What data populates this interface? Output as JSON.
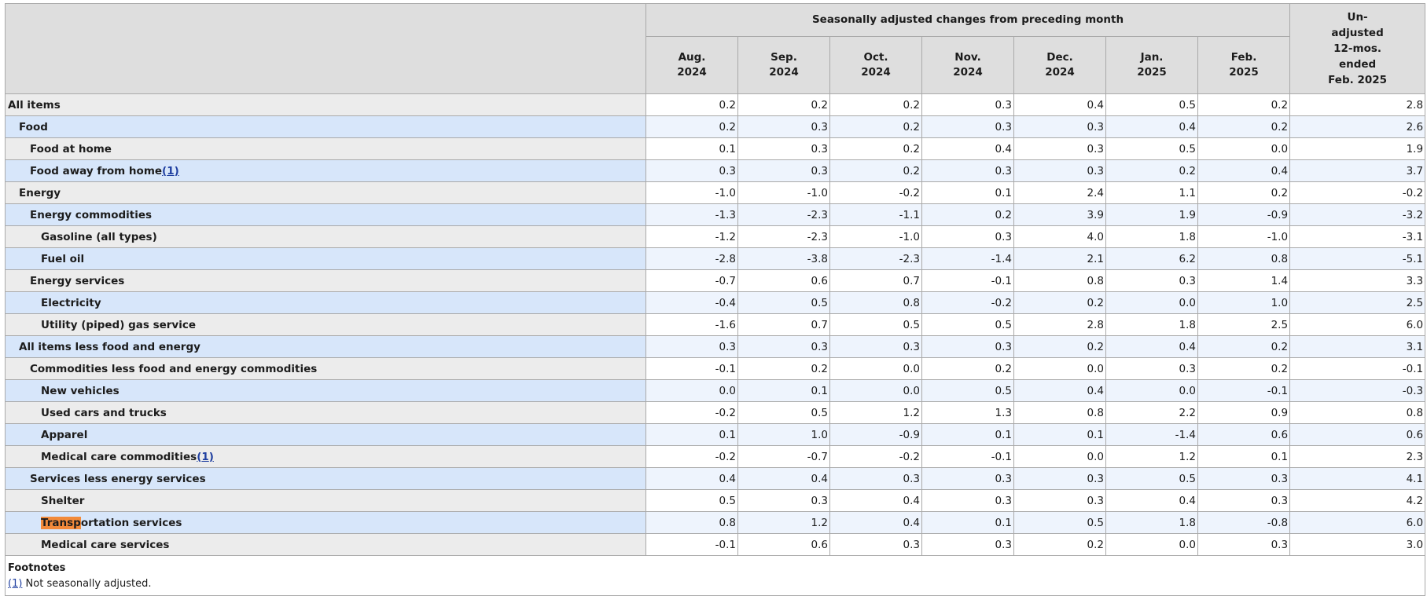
{
  "header": {
    "group_title": "Seasonally adjusted changes from preceding month",
    "months": [
      {
        "line1": "Aug.",
        "line2": "2024"
      },
      {
        "line1": "Sep.",
        "line2": "2024"
      },
      {
        "line1": "Oct.",
        "line2": "2024"
      },
      {
        "line1": "Nov.",
        "line2": "2024"
      },
      {
        "line1": "Dec.",
        "line2": "2024"
      },
      {
        "line1": "Jan.",
        "line2": "2025"
      },
      {
        "line1": "Feb.",
        "line2": "2025"
      }
    ],
    "unadjusted_lines": [
      "Un-",
      "adjusted",
      "12-mos.",
      "ended",
      "Feb. 2025"
    ]
  },
  "rows": [
    {
      "label": "All items",
      "indent": 0,
      "values": [
        "0.2",
        "0.2",
        "0.2",
        "0.3",
        "0.4",
        "0.5",
        "0.2",
        "2.8"
      ]
    },
    {
      "label": "Food",
      "indent": 1,
      "values": [
        "0.2",
        "0.3",
        "0.2",
        "0.3",
        "0.3",
        "0.4",
        "0.2",
        "2.6"
      ]
    },
    {
      "label": "Food at home",
      "indent": 2,
      "values": [
        "0.1",
        "0.3",
        "0.2",
        "0.4",
        "0.3",
        "0.5",
        "0.0",
        "1.9"
      ]
    },
    {
      "label": "Food away from home",
      "indent": 2,
      "footnote": "1",
      "values": [
        "0.3",
        "0.3",
        "0.2",
        "0.3",
        "0.3",
        "0.2",
        "0.4",
        "3.7"
      ]
    },
    {
      "label": "Energy",
      "indent": 1,
      "values": [
        "-1.0",
        "-1.0",
        "-0.2",
        "0.1",
        "2.4",
        "1.1",
        "0.2",
        "-0.2"
      ]
    },
    {
      "label": "Energy commodities",
      "indent": 2,
      "values": [
        "-1.3",
        "-2.3",
        "-1.1",
        "0.2",
        "3.9",
        "1.9",
        "-0.9",
        "-3.2"
      ]
    },
    {
      "label": "Gasoline (all types)",
      "indent": 3,
      "values": [
        "-1.2",
        "-2.3",
        "-1.0",
        "0.3",
        "4.0",
        "1.8",
        "-1.0",
        "-3.1"
      ]
    },
    {
      "label": "Fuel oil",
      "indent": 3,
      "values": [
        "-2.8",
        "-3.8",
        "-2.3",
        "-1.4",
        "2.1",
        "6.2",
        "0.8",
        "-5.1"
      ]
    },
    {
      "label": "Energy services",
      "indent": 2,
      "values": [
        "-0.7",
        "0.6",
        "0.7",
        "-0.1",
        "0.8",
        "0.3",
        "1.4",
        "3.3"
      ]
    },
    {
      "label": "Electricity",
      "indent": 3,
      "values": [
        "-0.4",
        "0.5",
        "0.8",
        "-0.2",
        "0.2",
        "0.0",
        "1.0",
        "2.5"
      ]
    },
    {
      "label": "Utility (piped) gas service",
      "indent": 3,
      "values": [
        "-1.6",
        "0.7",
        "0.5",
        "0.5",
        "2.8",
        "1.8",
        "2.5",
        "6.0"
      ]
    },
    {
      "label": "All items less food and energy",
      "indent": 1,
      "values": [
        "0.3",
        "0.3",
        "0.3",
        "0.3",
        "0.2",
        "0.4",
        "0.2",
        "3.1"
      ]
    },
    {
      "label": "Commodities less food and energy commodities",
      "indent": 2,
      "values": [
        "-0.1",
        "0.2",
        "0.0",
        "0.2",
        "0.0",
        "0.3",
        "0.2",
        "-0.1"
      ]
    },
    {
      "label": "New vehicles",
      "indent": 3,
      "values": [
        "0.0",
        "0.1",
        "0.0",
        "0.5",
        "0.4",
        "0.0",
        "-0.1",
        "-0.3"
      ]
    },
    {
      "label": "Used cars and trucks",
      "indent": 3,
      "values": [
        "-0.2",
        "0.5",
        "1.2",
        "1.3",
        "0.8",
        "2.2",
        "0.9",
        "0.8"
      ]
    },
    {
      "label": "Apparel",
      "indent": 3,
      "values": [
        "0.1",
        "1.0",
        "-0.9",
        "0.1",
        "0.1",
        "-1.4",
        "0.6",
        "0.6"
      ]
    },
    {
      "label": "Medical care commodities",
      "indent": 3,
      "footnote": "1",
      "values": [
        "-0.2",
        "-0.7",
        "-0.2",
        "-0.1",
        "0.0",
        "1.2",
        "0.1",
        "2.3"
      ]
    },
    {
      "label": "Services less energy services",
      "indent": 2,
      "values": [
        "0.4",
        "0.4",
        "0.3",
        "0.3",
        "0.3",
        "0.5",
        "0.3",
        "4.1"
      ]
    },
    {
      "label": "Shelter",
      "indent": 3,
      "values": [
        "0.5",
        "0.3",
        "0.4",
        "0.3",
        "0.3",
        "0.4",
        "0.3",
        "4.2"
      ]
    },
    {
      "label": "Transportation services",
      "indent": 3,
      "highlight_prefix": "Transp",
      "values": [
        "0.8",
        "1.2",
        "0.4",
        "0.1",
        "0.5",
        "1.8",
        "-0.8",
        "6.0"
      ]
    },
    {
      "label": "Medical care services",
      "indent": 3,
      "values": [
        "-0.1",
        "0.6",
        "0.3",
        "0.3",
        "0.2",
        "0.0",
        "0.3",
        "3.0"
      ]
    }
  ],
  "footnotes": {
    "title": "Footnotes",
    "items": [
      {
        "marker": "(1)",
        "text": " Not seasonally adjusted."
      }
    ]
  },
  "colors": {
    "header_bg": "#dedede",
    "label_bg": "#ececec",
    "label_bg_alt": "#d7e6fa",
    "value_bg_alt": "#eef4fd",
    "highlight": "#f28a3a",
    "link": "#1f3fa0"
  }
}
